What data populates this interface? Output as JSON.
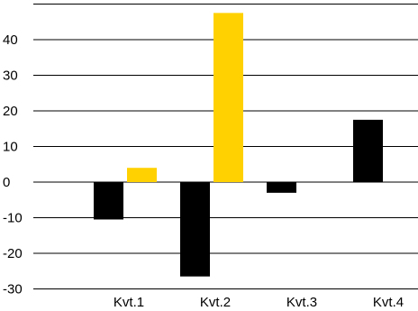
{
  "chart_data": {
    "type": "bar",
    "title": "",
    "xlabel": "",
    "ylabel": "",
    "categories": [
      "Kvt.1",
      "Kvt.2",
      "Kvt.3",
      "Kvt.4"
    ],
    "series": [
      {
        "color": "#000000",
        "values": [
          -10.5,
          -26.5,
          -3,
          17.5
        ]
      },
      {
        "color": "#FFD100",
        "values": [
          4,
          47.5,
          0,
          0
        ]
      }
    ],
    "ylim": [
      -30,
      50
    ],
    "yticks": [
      -30,
      -20,
      -10,
      0,
      10,
      20,
      30,
      40
    ],
    "grid": true,
    "legend": "none"
  }
}
